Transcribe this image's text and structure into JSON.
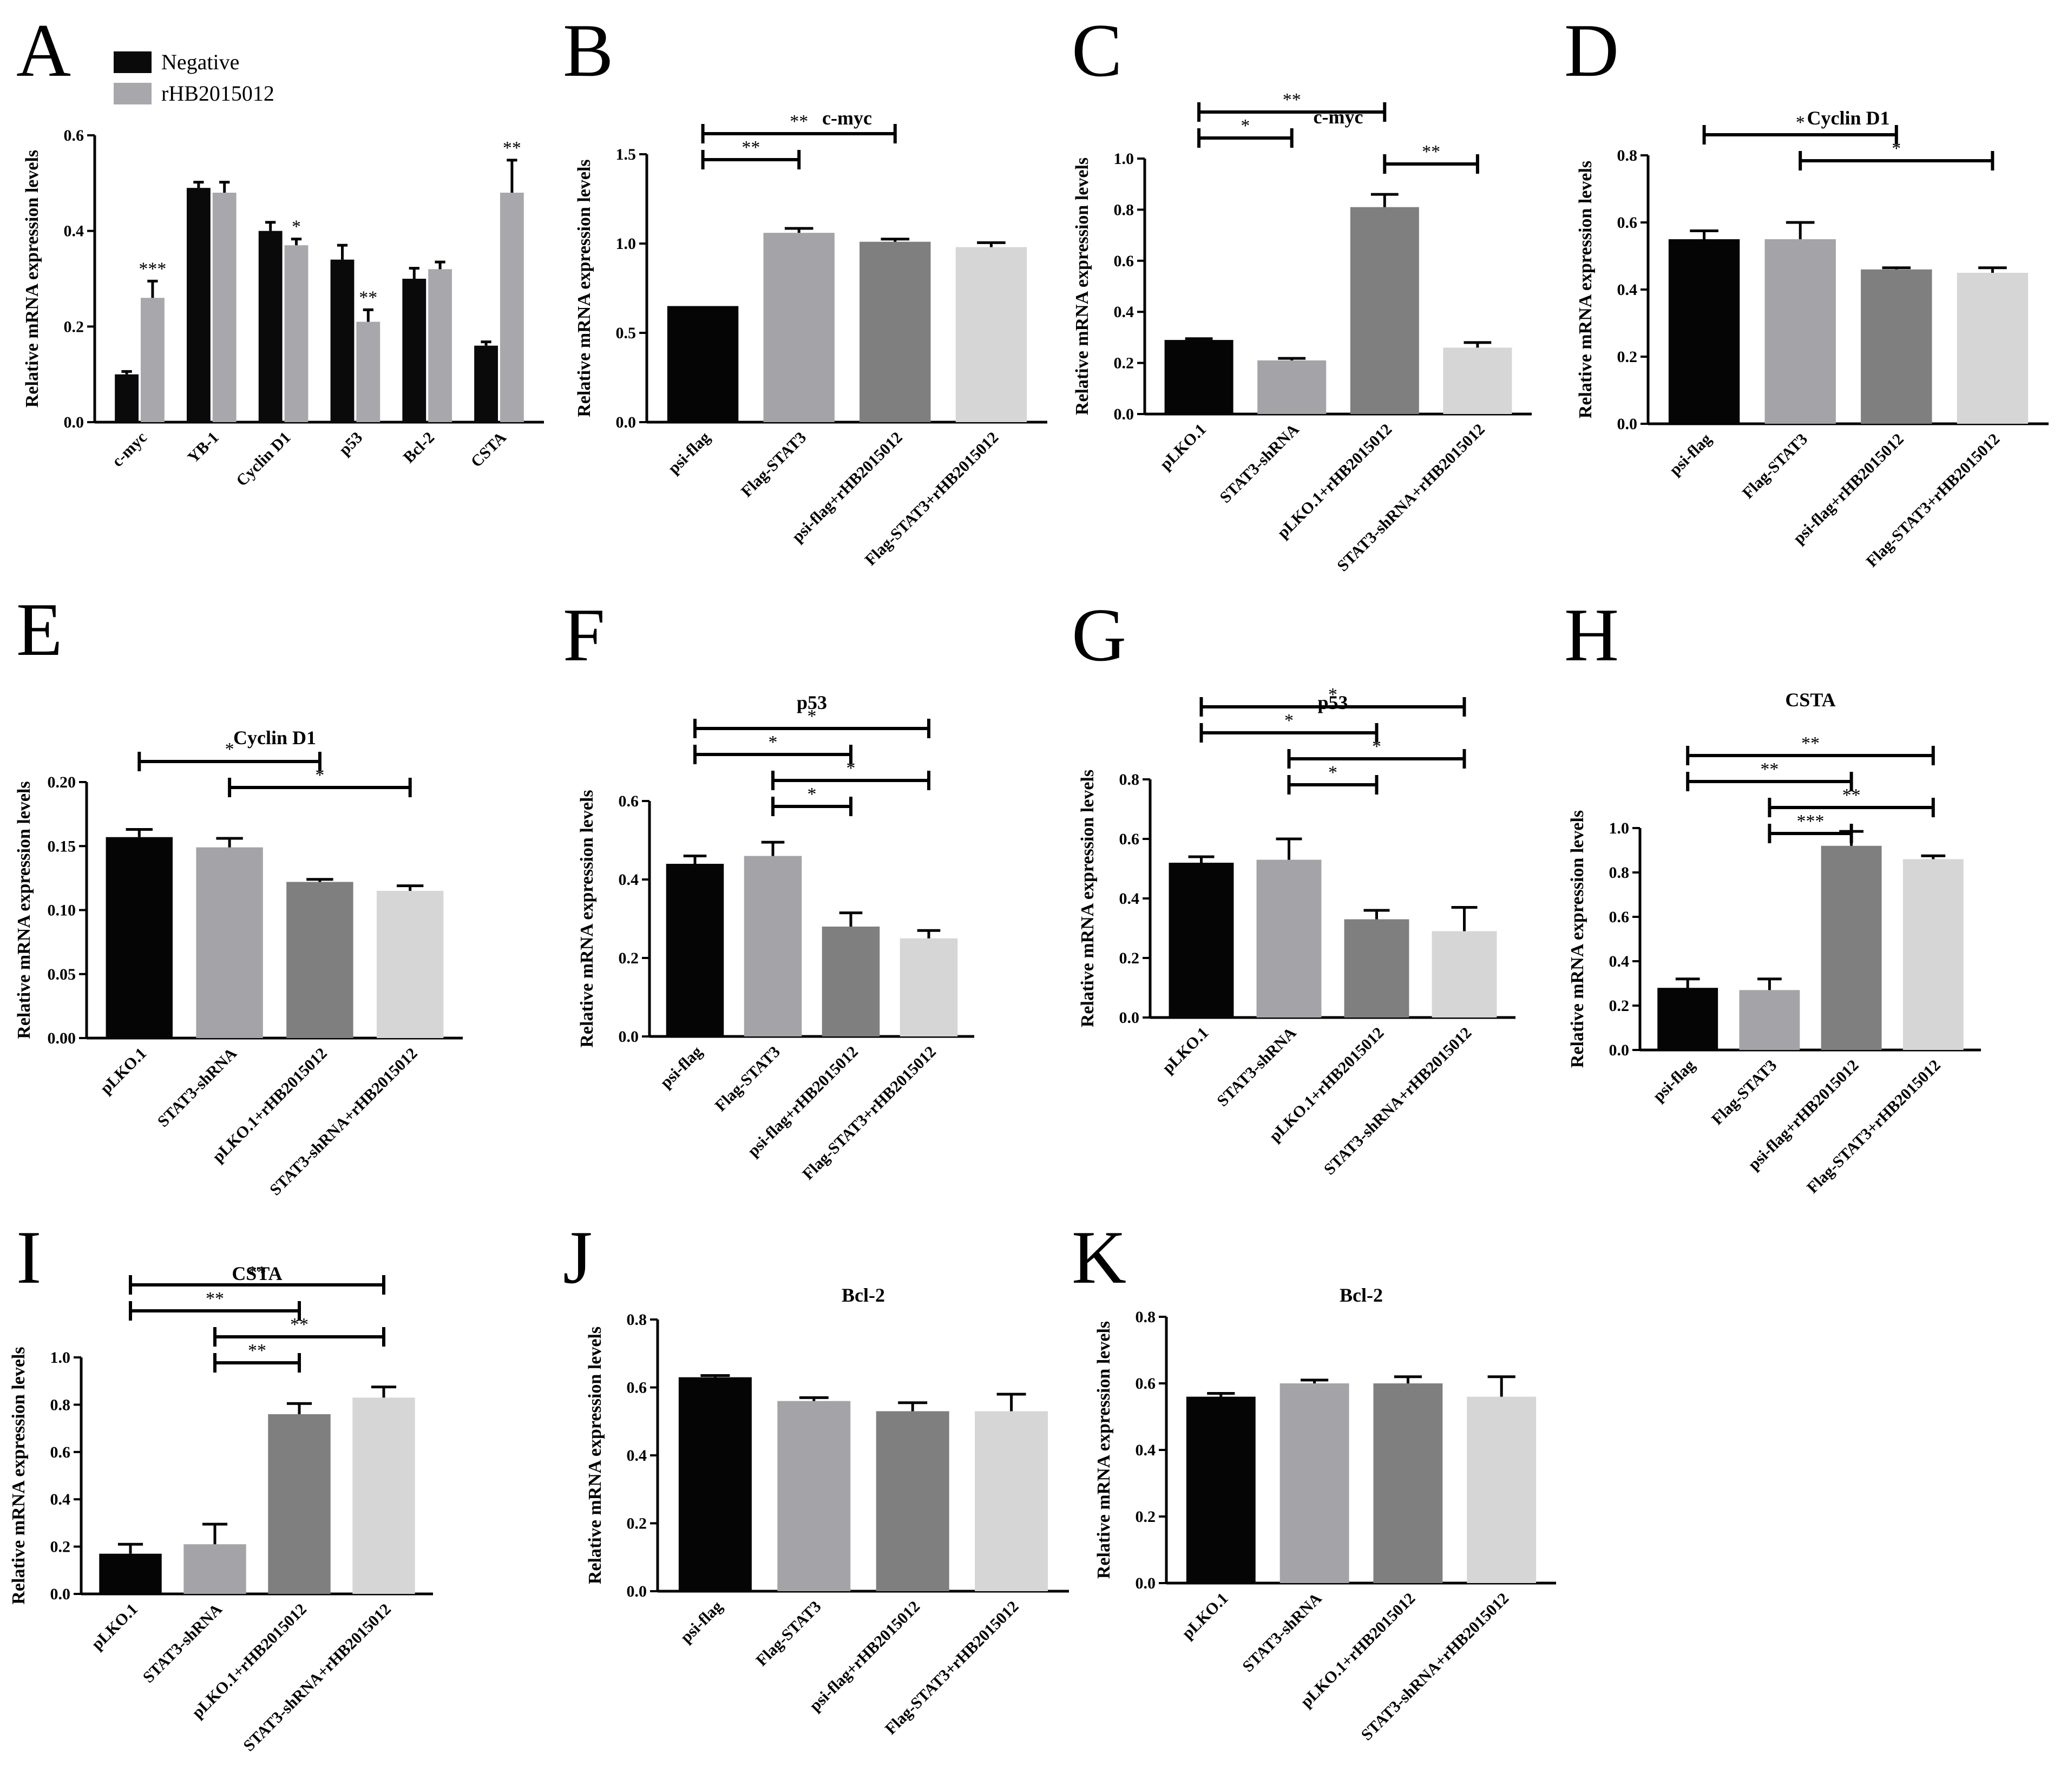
{
  "colors": {
    "negative": "#0a0a0a",
    "treated": "#a8a8ac",
    "bar1": "#050505",
    "bar2": "#a4a4a8",
    "bar3": "#7f7f7f",
    "bar4": "#d6d6d6",
    "ink": "#000000"
  },
  "ylabel": "Relative  mRNA expression levels",
  "chart_data": [
    {
      "panel": "A",
      "type": "bar",
      "title": "",
      "ylabel": "Relative  mRNA expression levels",
      "legend": [
        "Negative",
        "rHB2015012"
      ],
      "legend_position": "top-left",
      "categories": [
        "c-myc",
        "YB-1",
        "Cyclin D1",
        "p53",
        "Bcl-2",
        "CSTA"
      ],
      "series": [
        {
          "name": "Negative",
          "values": [
            0.1,
            0.49,
            0.4,
            0.34,
            0.3,
            0.16
          ],
          "errors": [
            0.006,
            0.012,
            0.018,
            0.03,
            0.022,
            0.008
          ]
        },
        {
          "name": "rHB2015012",
          "values": [
            0.26,
            0.48,
            0.37,
            0.21,
            0.32,
            0.48
          ],
          "errors": [
            0.035,
            0.022,
            0.013,
            0.025,
            0.015,
            0.068
          ]
        }
      ],
      "stars": [
        "***",
        "",
        "*",
        "**",
        "",
        "**"
      ],
      "ylim": [
        0,
        0.6
      ],
      "yticks": [
        "0.0",
        "0.2",
        "0.4",
        "0.6"
      ]
    },
    {
      "panel": "B",
      "type": "bar",
      "title": "c-myc",
      "ylabel": "Relative  mRNA expression levels",
      "categories": [
        "psi-flag",
        "Flag-STAT3",
        "psi-flag+rHB2015012",
        "Flag-STAT3+rHB2015012"
      ],
      "values": [
        0.65,
        1.06,
        1.01,
        0.98
      ],
      "errors": [
        0.0,
        0.025,
        0.015,
        0.025
      ],
      "ylim": [
        0,
        1.5
      ],
      "yticks": [
        "0.0",
        "0.5",
        "1.0",
        "1.5"
      ],
      "brackets": [
        {
          "from": 0,
          "to": 1,
          "label": "**"
        },
        {
          "from": 0,
          "to": 2,
          "label": "**"
        }
      ]
    },
    {
      "panel": "C",
      "type": "bar",
      "title": "c-myc",
      "ylabel": "Relative  mRNA expression levels",
      "categories": [
        "pLKO.1",
        "STAT3-shRNA",
        "pLKO.1+rHB2015012",
        "STAT3-shRNA+rHB2015012"
      ],
      "values": [
        0.29,
        0.21,
        0.81,
        0.26
      ],
      "errors": [
        0.005,
        0.008,
        0.05,
        0.02
      ],
      "ylim": [
        0,
        1.0
      ],
      "yticks": [
        "0.0",
        "0.2",
        "0.4",
        "0.6",
        "0.8",
        "1.0"
      ],
      "brackets": [
        {
          "from": 0,
          "to": 1,
          "label": "*"
        },
        {
          "from": 0,
          "to": 2,
          "label": "**"
        },
        {
          "from": 2,
          "to": 3,
          "label": "**"
        }
      ]
    },
    {
      "panel": "D",
      "type": "bar",
      "title": "Cyclin D1",
      "ylabel": "Relative  mRNA expression levels",
      "categories": [
        "psi-flag",
        "Flag-STAT3",
        "psi-flag+rHB2015012",
        "Flag-STAT3+rHB2015012"
      ],
      "values": [
        0.55,
        0.55,
        0.46,
        0.45
      ],
      "errors": [
        0.025,
        0.05,
        0.005,
        0.015
      ],
      "ylim": [
        0,
        0.8
      ],
      "yticks": [
        "0.0",
        "0.2",
        "0.4",
        "0.6",
        "0.8"
      ],
      "brackets": [
        {
          "from": 0,
          "to": 2,
          "label": "*"
        },
        {
          "from": 1,
          "to": 3,
          "label": "*"
        }
      ]
    },
    {
      "panel": "E",
      "type": "bar",
      "title": "Cyclin D1",
      "ylabel": "Relative  mRNA expression levels",
      "categories": [
        "pLKO.1",
        "STAT3-shRNA",
        "pLKO.1+rHB2015012",
        "STAT3-shRNA+rHB2015012"
      ],
      "values": [
        0.157,
        0.149,
        0.122,
        0.115
      ],
      "errors": [
        0.006,
        0.007,
        0.002,
        0.004
      ],
      "ylim": [
        0,
        0.2
      ],
      "yticks": [
        "0.00",
        "0.05",
        "0.10",
        "0.15",
        "0.20"
      ],
      "brackets": [
        {
          "from": 0,
          "to": 2,
          "label": "*"
        },
        {
          "from": 1,
          "to": 3,
          "label": "*"
        }
      ]
    },
    {
      "panel": "F",
      "type": "bar",
      "title": "p53",
      "ylabel": "Relative  mRNA expression levels",
      "categories": [
        "psi-flag",
        "Flag-STAT3",
        "psi-flag+rHB2015012",
        "Flag-STAT3+rHB2015012"
      ],
      "values": [
        0.44,
        0.46,
        0.28,
        0.25
      ],
      "errors": [
        0.02,
        0.035,
        0.035,
        0.02
      ],
      "ylim": [
        0,
        0.6
      ],
      "yticks": [
        "0.0",
        "0.2",
        "0.4",
        "0.6"
      ],
      "brackets": [
        {
          "from": 0,
          "to": 3,
          "label": "*"
        },
        {
          "from": 0,
          "to": 2,
          "label": "*"
        },
        {
          "from": 1,
          "to": 3,
          "label": "*"
        },
        {
          "from": 1,
          "to": 2,
          "label": "*"
        }
      ]
    },
    {
      "panel": "G",
      "type": "bar",
      "title": "p53",
      "ylabel": "Relative  mRNA expression levels",
      "categories": [
        "pLKO.1",
        "STAT3-shRNA",
        "pLKO.1+rHB2015012",
        "STAT3-shRNA+rHB2015012"
      ],
      "values": [
        0.52,
        0.53,
        0.33,
        0.29
      ],
      "errors": [
        0.02,
        0.07,
        0.03,
        0.08
      ],
      "ylim": [
        0,
        0.8
      ],
      "yticks": [
        "0.0",
        "0.2",
        "0.4",
        "0.6",
        "0.8"
      ],
      "brackets": [
        {
          "from": 0,
          "to": 3,
          "label": "*"
        },
        {
          "from": 0,
          "to": 2,
          "label": "*"
        },
        {
          "from": 1,
          "to": 3,
          "label": "*"
        },
        {
          "from": 1,
          "to": 2,
          "label": "*"
        }
      ]
    },
    {
      "panel": "H",
      "type": "bar",
      "title": "CSTA",
      "ylabel": "Relative  mRNA expression levels",
      "categories": [
        "psi-flag",
        "Flag-STAT3",
        "psi-flag+rHB2015012",
        "Flag-STAT3+rHB2015012"
      ],
      "values": [
        0.28,
        0.27,
        0.92,
        0.86
      ],
      "errors": [
        0.04,
        0.05,
        0.065,
        0.015
      ],
      "ylim": [
        0,
        1.0
      ],
      "yticks": [
        "0.0",
        "0.2",
        "0.4",
        "0.6",
        "0.8",
        "1.0"
      ],
      "brackets": [
        {
          "from": 0,
          "to": 3,
          "label": "**"
        },
        {
          "from": 0,
          "to": 2,
          "label": "**"
        },
        {
          "from": 1,
          "to": 3,
          "label": "**"
        },
        {
          "from": 1,
          "to": 2,
          "label": "***"
        }
      ]
    },
    {
      "panel": "I",
      "type": "bar",
      "title": "CSTA",
      "ylabel": "Relative  mRNA expression levels",
      "categories": [
        "pLKO.1",
        "STAT3-shRNA",
        "pLKO.1+rHB2015012",
        "STAT3-shRNA+rHB2015012"
      ],
      "values": [
        0.17,
        0.21,
        0.76,
        0.83
      ],
      "errors": [
        0.04,
        0.085,
        0.045,
        0.045
      ],
      "ylim": [
        0,
        1.0
      ],
      "yticks": [
        "0.0",
        "0.2",
        "0.4",
        "0.6",
        "0.8",
        "1.0"
      ],
      "brackets": [
        {
          "from": 0,
          "to": 3,
          "label": "**"
        },
        {
          "from": 0,
          "to": 2,
          "label": "**"
        },
        {
          "from": 1,
          "to": 3,
          "label": "**"
        },
        {
          "from": 1,
          "to": 2,
          "label": "**"
        }
      ]
    },
    {
      "panel": "J",
      "type": "bar",
      "title": "Bcl-2",
      "ylabel": "Relative  mRNA expression levels",
      "categories": [
        "psi-flag",
        "Flag-STAT3",
        "psi-flag+rHB2015012",
        "Flag-STAT3+rHB2015012"
      ],
      "values": [
        0.63,
        0.56,
        0.53,
        0.53
      ],
      "errors": [
        0.005,
        0.01,
        0.025,
        0.05
      ],
      "ylim": [
        0,
        0.8
      ],
      "yticks": [
        "0.0",
        "0.2",
        "0.4",
        "0.6",
        "0.8"
      ],
      "brackets": []
    },
    {
      "panel": "K",
      "type": "bar",
      "title": "Bcl-2",
      "ylabel": "Relative  mRNA expression levels",
      "categories": [
        "pLKO.1",
        "STAT3-shRNA",
        "pLKO.1+rHB2015012",
        "STAT3-shRNA+rHB2015012"
      ],
      "values": [
        0.56,
        0.6,
        0.6,
        0.56
      ],
      "errors": [
        0.01,
        0.01,
        0.02,
        0.06
      ],
      "ylim": [
        0,
        0.8
      ],
      "yticks": [
        "0.0",
        "0.2",
        "0.4",
        "0.6",
        "0.8"
      ],
      "brackets": []
    }
  ]
}
